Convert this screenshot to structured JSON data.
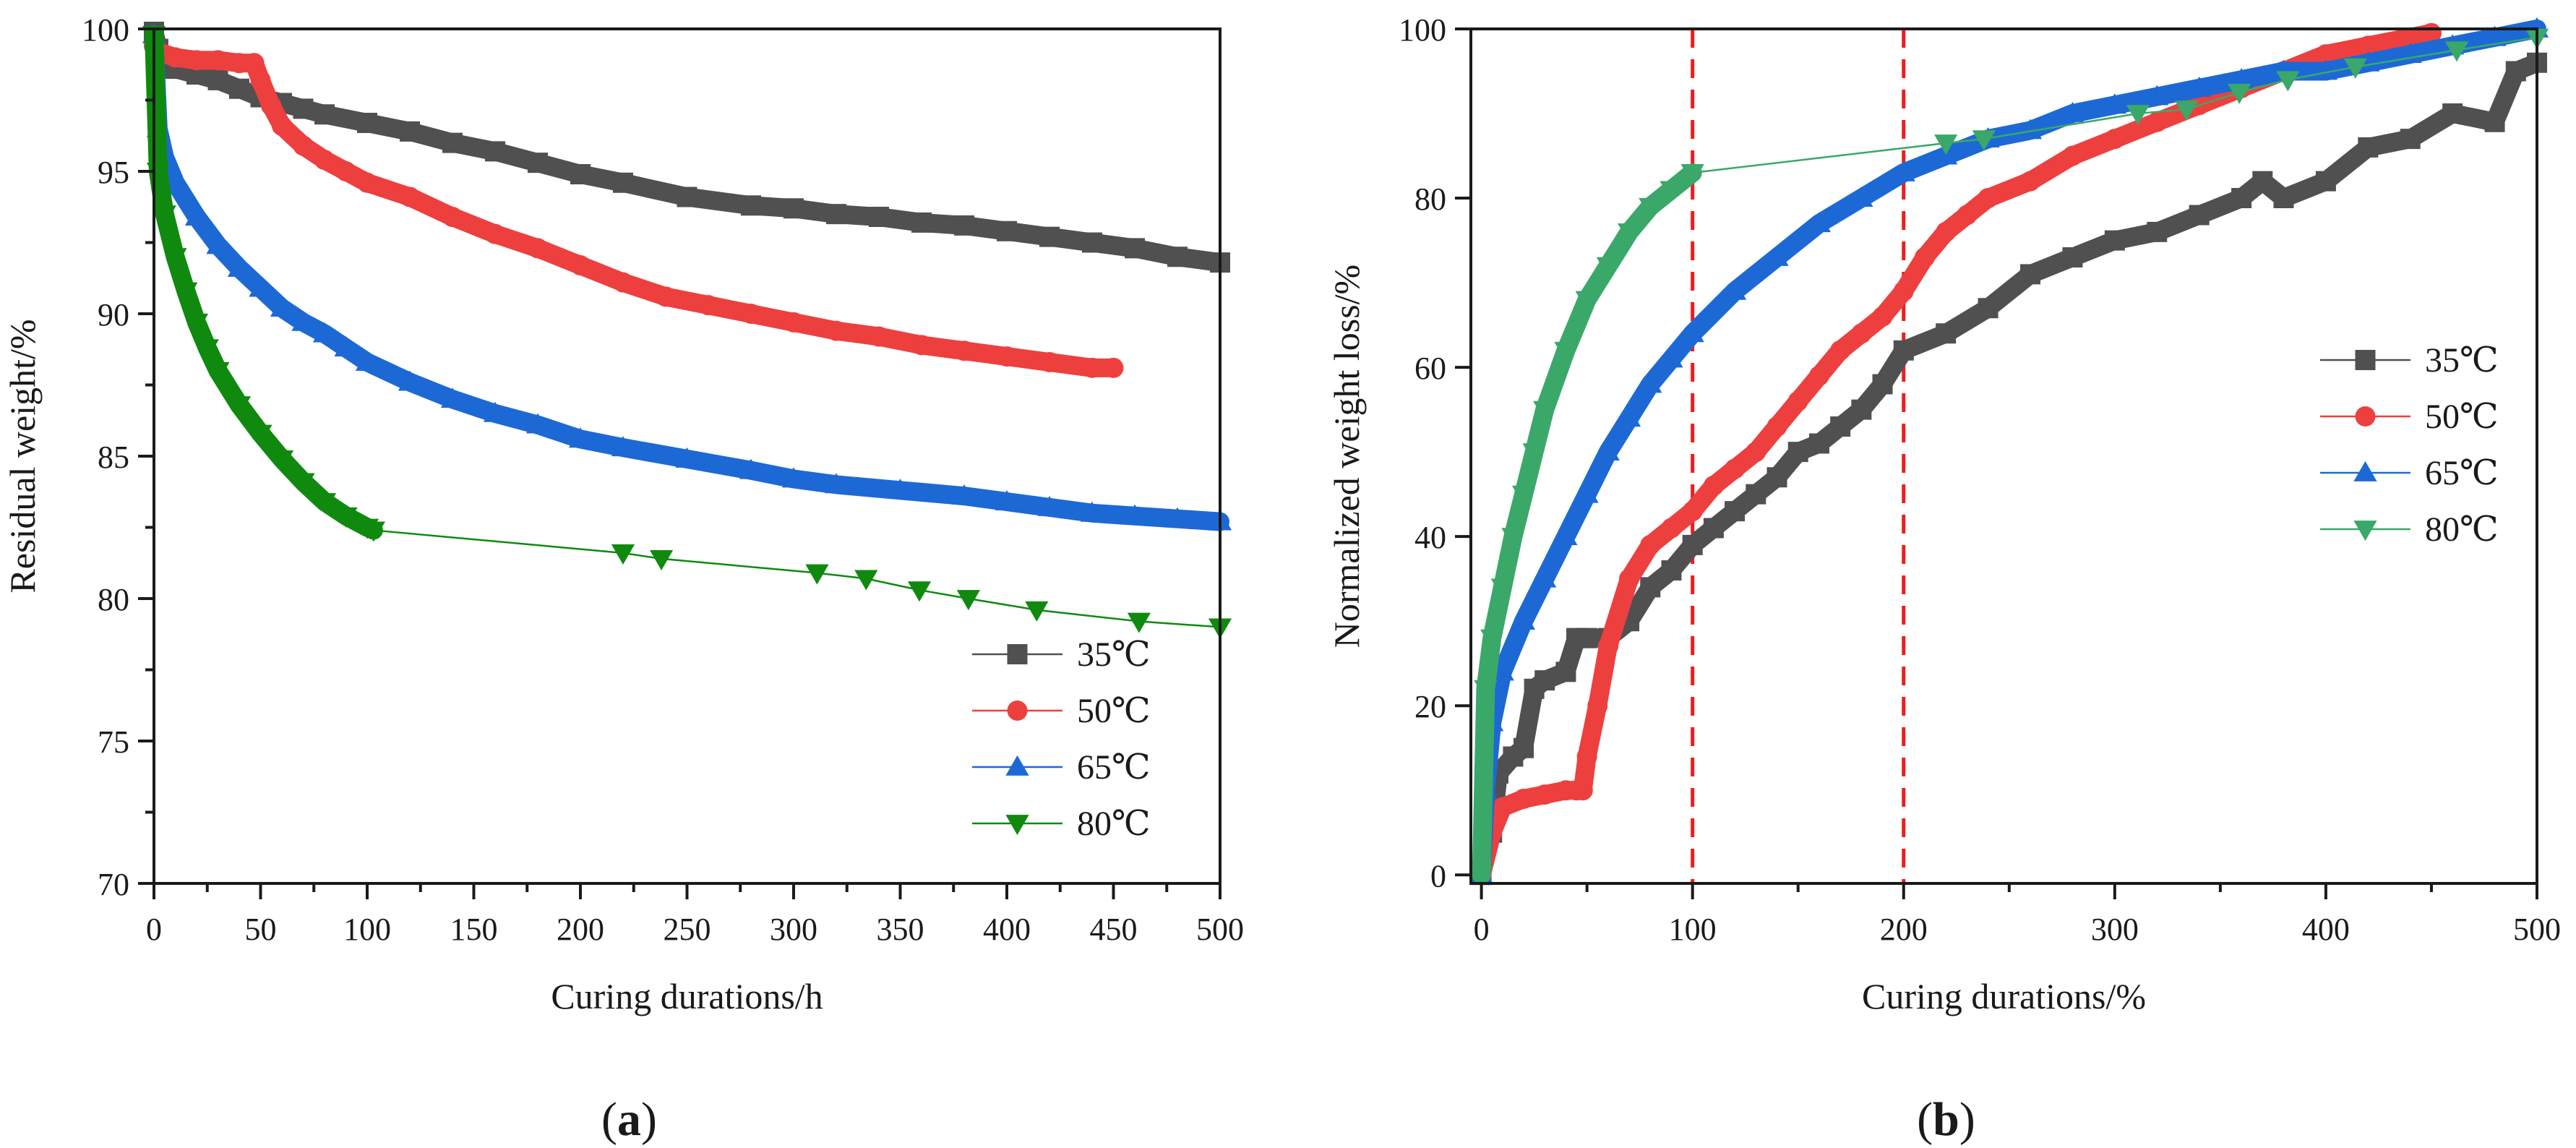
{
  "colors": {
    "35": "#505050",
    "50": "#ee3f3f",
    "65": "#1c69d6",
    "80_a": "#0f8a0f",
    "80_b": "#3aa869",
    "guide": "#ee1c1c",
    "axis": "#1a1a1a"
  },
  "chart_data": [
    {
      "id": "a",
      "type": "line",
      "panel_label": {
        "open": "(",
        "letter": "a",
        "close": ")"
      },
      "title": "",
      "xlabel": "Curing durations/h",
      "ylabel": "Residual weight/%",
      "xlim": [
        0,
        500
      ],
      "ylim": [
        70,
        100
      ],
      "xticks": [
        0,
        50,
        100,
        150,
        200,
        250,
        300,
        350,
        400,
        450,
        500
      ],
      "yticks": [
        70,
        75,
        80,
        85,
        90,
        95,
        100
      ],
      "legend_position": "bottom-right",
      "legend": [
        "35℃",
        "50℃",
        "65℃",
        "80℃"
      ],
      "series": [
        {
          "name": "35℃",
          "marker": "square",
          "color_key": "35",
          "x": [
            0,
            2,
            5,
            10,
            20,
            30,
            40,
            50,
            60,
            70,
            80,
            100,
            120,
            140,
            160,
            180,
            200,
            220,
            250,
            280,
            300,
            320,
            340,
            360,
            380,
            400,
            420,
            440,
            460,
            480,
            500
          ],
          "y": [
            99.9,
            99.3,
            98.9,
            98.6,
            98.4,
            98.2,
            97.9,
            97.6,
            97.4,
            97.2,
            97.0,
            96.7,
            96.4,
            96.0,
            95.7,
            95.3,
            94.9,
            94.6,
            94.1,
            93.8,
            93.7,
            93.5,
            93.4,
            93.2,
            93.1,
            92.9,
            92.7,
            92.5,
            92.3,
            92.0,
            91.8
          ]
        },
        {
          "name": "50℃",
          "marker": "circle",
          "color_key": "50",
          "x": [
            0,
            2,
            10,
            20,
            30,
            40,
            47,
            50,
            55,
            60,
            70,
            80,
            90,
            100,
            120,
            140,
            160,
            180,
            200,
            220,
            240,
            260,
            280,
            300,
            320,
            340,
            360,
            380,
            400,
            420,
            440,
            450
          ],
          "y": [
            99.4,
            99.2,
            99.0,
            98.9,
            98.9,
            98.8,
            98.8,
            98.2,
            97.3,
            96.6,
            95.9,
            95.4,
            95.0,
            94.6,
            94.1,
            93.4,
            92.8,
            92.3,
            91.7,
            91.1,
            90.6,
            90.3,
            90.0,
            89.7,
            89.4,
            89.2,
            88.9,
            88.7,
            88.5,
            88.3,
            88.1,
            88.1
          ]
        },
        {
          "name": "65℃",
          "marker": "triangle-up",
          "color_key": "65",
          "x": [
            0,
            2,
            5,
            10,
            20,
            30,
            40,
            50,
            60,
            70,
            80,
            90,
            100,
            120,
            140,
            160,
            180,
            200,
            220,
            250,
            280,
            300,
            320,
            350,
            380,
            400,
            420,
            440,
            460,
            480,
            500
          ],
          "y": [
            99.8,
            96.5,
            95.5,
            94.6,
            93.4,
            92.4,
            91.6,
            90.9,
            90.2,
            89.7,
            89.3,
            88.8,
            88.3,
            87.6,
            87.0,
            86.5,
            86.1,
            85.6,
            85.3,
            84.9,
            84.5,
            84.2,
            84.0,
            83.8,
            83.6,
            83.4,
            83.2,
            83.0,
            82.9,
            82.8,
            82.7
          ]
        },
        {
          "name": "80℃",
          "marker": "triangle-down",
          "color_key": "80_a",
          "x": [
            0,
            2,
            5,
            10,
            15,
            20,
            25,
            30,
            40,
            50,
            60,
            70,
            80,
            90,
            100,
            103,
            220,
            238,
            311,
            334,
            359,
            382,
            414,
            462,
            500
          ],
          "y": [
            99.8,
            95.0,
            93.5,
            92.0,
            90.8,
            89.7,
            88.8,
            88.0,
            86.8,
            85.8,
            84.9,
            84.1,
            83.4,
            82.9,
            82.5,
            82.4,
            81.6,
            81.4,
            80.9,
            80.7,
            80.3,
            80.0,
            79.6,
            79.2,
            79.0
          ]
        }
      ]
    },
    {
      "id": "b",
      "type": "line",
      "panel_label": {
        "open": "(",
        "letter": "b",
        "close": ")"
      },
      "title": "",
      "xlabel": "Curing durations/%",
      "ylabel": "Normalized weight loss/%",
      "xlim": [
        -5,
        500
      ],
      "ylim": [
        -1,
        100
      ],
      "xticks": [
        0,
        100,
        200,
        300,
        400,
        500
      ],
      "yticks": [
        0,
        20,
        40,
        60,
        80,
        100
      ],
      "vlines": [
        100,
        200
      ],
      "legend_position": "middle-right",
      "legend": [
        "35℃",
        "50℃",
        "65℃",
        "80℃"
      ],
      "series": [
        {
          "name": "35℃",
          "marker": "square",
          "color_key": "35",
          "x": [
            0,
            5,
            8,
            15,
            20,
            25,
            30,
            40,
            45,
            50,
            60,
            70,
            80,
            90,
            100,
            110,
            120,
            130,
            140,
            150,
            160,
            170,
            180,
            190,
            200,
            220,
            240,
            260,
            280,
            300,
            320,
            340,
            360,
            370,
            380,
            400,
            420,
            440,
            460,
            480,
            490,
            500
          ],
          "y": [
            0,
            5,
            12,
            14,
            15,
            22,
            23,
            24,
            28,
            28,
            28,
            30,
            34,
            36,
            39,
            41,
            43,
            45,
            47,
            50,
            51,
            53,
            55,
            58,
            62,
            64,
            67,
            71,
            73,
            75,
            76,
            78,
            80,
            82,
            80,
            82,
            86,
            87,
            90,
            89,
            95,
            96
          ]
        },
        {
          "name": "50℃",
          "marker": "circle",
          "color_key": "50",
          "x": [
            0,
            5,
            10,
            20,
            30,
            40,
            45,
            48,
            50,
            55,
            60,
            70,
            80,
            90,
            100,
            110,
            120,
            130,
            140,
            150,
            160,
            170,
            180,
            190,
            200,
            210,
            220,
            230,
            240,
            260,
            280,
            300,
            320,
            340,
            360,
            380,
            400,
            420,
            440,
            450
          ],
          "y": [
            0,
            5,
            8,
            9,
            9.5,
            10,
            10,
            10,
            14,
            20,
            27,
            35,
            39,
            41,
            43,
            46,
            48,
            50,
            53,
            56,
            59,
            62,
            64,
            66,
            69,
            73,
            76,
            78,
            80,
            82,
            85,
            87,
            89,
            91,
            93,
            95,
            97,
            98,
            99,
            99.5
          ]
        },
        {
          "name": "65℃",
          "marker": "triangle-up",
          "color_key": "65",
          "x": [
            0,
            2,
            5,
            10,
            20,
            30,
            40,
            50,
            60,
            70,
            80,
            90,
            100,
            120,
            140,
            160,
            180,
            200,
            220,
            240,
            260,
            280,
            300,
            320,
            340,
            360,
            380,
            400,
            420,
            440,
            460,
            480,
            500
          ],
          "y": [
            0,
            10,
            18,
            24,
            30,
            35,
            40,
            45,
            50,
            54,
            58,
            61,
            64,
            69,
            73,
            77,
            80,
            83,
            85,
            87,
            88,
            90,
            91,
            92,
            93,
            94,
            95,
            95,
            96,
            97,
            98,
            99,
            100
          ]
        },
        {
          "name": "80℃",
          "marker": "triangle-down",
          "color_key": "80_b",
          "x": [
            0,
            2,
            5,
            10,
            15,
            20,
            25,
            30,
            40,
            50,
            60,
            70,
            80,
            90,
            100,
            220,
            238,
            311,
            334,
            359,
            382,
            414,
            462,
            500
          ],
          "y": [
            0,
            22,
            28,
            34,
            40,
            45,
            50,
            55,
            62,
            68,
            72,
            76,
            79,
            81,
            83,
            86.5,
            87,
            90,
            90.5,
            92.5,
            94,
            95.5,
            97.5,
            99
          ]
        }
      ]
    }
  ]
}
